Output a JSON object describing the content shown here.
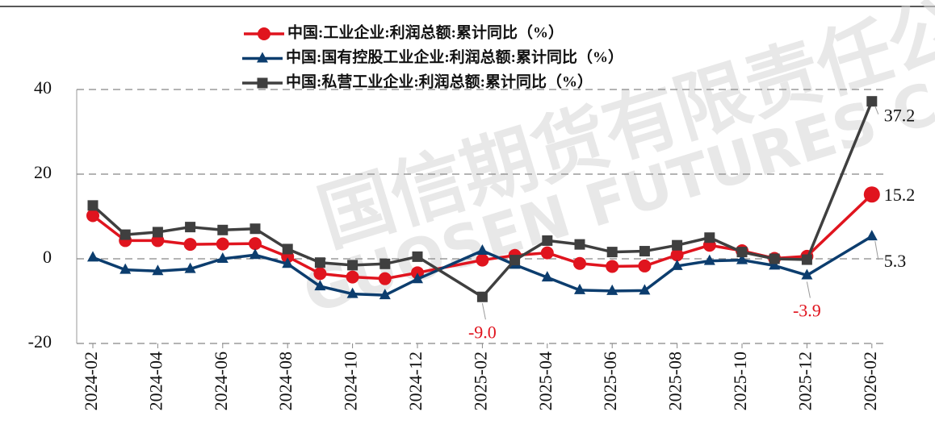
{
  "chart_data": {
    "type": "line",
    "watermark": [
      "国信期货有限责任公司",
      "GUOSEN FUTURES CO.,LTD"
    ],
    "x": [
      "2024-02",
      "2024-03",
      "2024-04",
      "2024-05",
      "2024-06",
      "2024-07",
      "2024-08",
      "2024-09",
      "2024-10",
      "2024-11",
      "2024-12",
      "2025-02",
      "2025-03",
      "2025-04",
      "2025-05",
      "2025-06",
      "2025-07",
      "2025-08",
      "2025-09",
      "2025-10",
      "2025-11",
      "2025-12",
      "2026-02"
    ],
    "xticks": [
      "2024-02",
      "2024-04",
      "2024-06",
      "2024-08",
      "2024-10",
      "2024-12",
      "2025-02",
      "2025-04",
      "2025-06",
      "2025-08",
      "2025-10",
      "2025-12",
      "2026-02"
    ],
    "ylim": [
      -20,
      40
    ],
    "yticks": [
      -20,
      0,
      20,
      40
    ],
    "grid": true,
    "legend": "top",
    "series": [
      {
        "name": "中国:工业企业:利润总额:累计同比（%）",
        "color": "#e0141e",
        "marker": "circle",
        "values": [
          10.2,
          4.3,
          4.3,
          3.4,
          3.5,
          3.6,
          0.5,
          -3.5,
          -4.3,
          -4.7,
          -3.3,
          -0.3,
          0.8,
          1.4,
          -1.1,
          -1.8,
          -1.7,
          0.9,
          3.2,
          1.9,
          0.1,
          0.6,
          15.2
        ],
        "value_labels": [
          null,
          null,
          null,
          null,
          null,
          null,
          null,
          null,
          null,
          null,
          null,
          null,
          null,
          null,
          null,
          null,
          null,
          null,
          null,
          null,
          null,
          null,
          "15.2"
        ]
      },
      {
        "name": "中国:国有控股工业企业:利润总额:累计同比（%）",
        "color": "#0c3d6e",
        "marker": "triangle",
        "values": [
          0.3,
          -2.6,
          -2.9,
          -2.4,
          0,
          0.9,
          -1.2,
          -6.5,
          -8.3,
          -8.6,
          -4.8,
          1.9,
          -1.4,
          -4.4,
          -7.4,
          -7.6,
          -7.5,
          -1.7,
          -0.5,
          -0.3,
          -1.6,
          -3.9,
          5.3
        ],
        "value_labels": [
          null,
          null,
          null,
          null,
          null,
          null,
          null,
          null,
          null,
          null,
          null,
          null,
          null,
          null,
          null,
          null,
          null,
          null,
          null,
          null,
          null,
          "-3.9",
          "5.3"
        ]
      },
      {
        "name": "中国:私营工业企业:利润总额:累计同比（%）",
        "color": "#3f3f3f",
        "marker": "square",
        "values": [
          12.6,
          5.7,
          6.3,
          7.5,
          6.8,
          7.1,
          2.3,
          -0.9,
          -1.5,
          -1.2,
          0.5,
          -9.0,
          -0.3,
          4.3,
          3.4,
          1.6,
          1.8,
          3.2,
          5.0,
          1.6,
          0,
          -0.2,
          37.2
        ],
        "value_labels": [
          null,
          null,
          null,
          null,
          null,
          null,
          null,
          null,
          null,
          null,
          null,
          "-9.0",
          null,
          null,
          null,
          null,
          null,
          null,
          null,
          null,
          null,
          null,
          "37.2"
        ]
      }
    ]
  }
}
